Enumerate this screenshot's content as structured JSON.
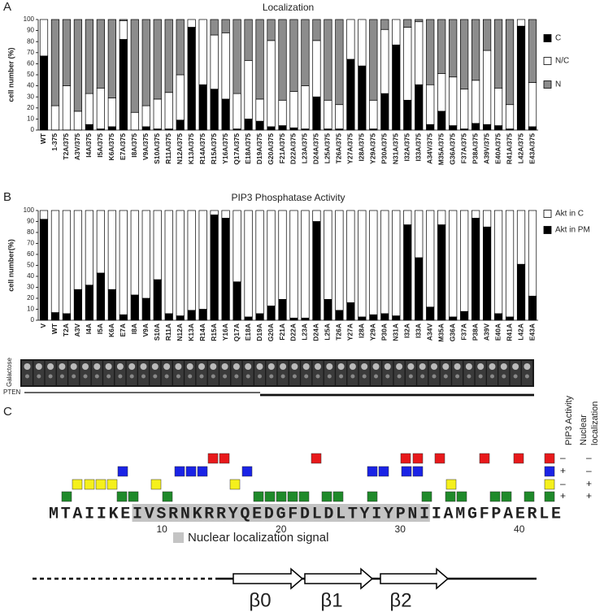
{
  "panel_labels": [
    "A",
    "B",
    "C"
  ],
  "chart_data": [
    {
      "type": "bar",
      "stacked": true,
      "title": "Localization",
      "ylabel": "cell number (%)",
      "categories": [
        "WT",
        "1-375",
        "T2A/375",
        "A3V/375",
        "I4A/375",
        "I5A/375",
        "K6A/375",
        "E7A/375",
        "I8A/375",
        "V9A/375",
        "S10A/375",
        "R11A/375",
        "N12A/375",
        "K13A/375",
        "R14A/375",
        "R15A/375",
        "Y16A/375",
        "Q17A/375",
        "E18A/375",
        "D19A/375",
        "G20A/375",
        "F21A/375",
        "D22A/375",
        "L23A/375",
        "D24A/375",
        "L25A/375",
        "T26A/375",
        "Y27A/375",
        "I28A/375",
        "Y29A/375",
        "P30A/375",
        "N31A/375",
        "I32A/375",
        "I33A/375",
        "A34V/375",
        "M35A/375",
        "G36A/375",
        "F37A/375",
        "P38A/375",
        "A39V/375",
        "E40A/375",
        "R41A/375",
        "L42A/375",
        "E43A/375"
      ],
      "series": [
        {
          "name": "C",
          "color": "#000000",
          "values": [
            67,
            0,
            0,
            0,
            5,
            1,
            3,
            82,
            0,
            3,
            1,
            1,
            9,
            93,
            41,
            37,
            28,
            1,
            10,
            8,
            3,
            4,
            2,
            1,
            30,
            1,
            1,
            64,
            58,
            1,
            33,
            77,
            27,
            41,
            5,
            17,
            4,
            1,
            6,
            5,
            4,
            1,
            94,
            3
          ]
        },
        {
          "name": "N/C",
          "color": "#ffffff",
          "values": [
            33,
            22,
            40,
            17,
            28,
            37,
            26,
            17,
            16,
            19,
            27,
            33,
            41,
            7,
            59,
            49,
            60,
            32,
            53,
            20,
            78,
            23,
            33,
            39,
            51,
            26,
            22,
            36,
            42,
            26,
            58,
            23,
            66,
            57,
            36,
            34,
            44,
            36,
            39,
            67,
            34,
            22,
            6,
            40
          ]
        },
        {
          "name": "N",
          "color": "#8c8c8c",
          "values": [
            0,
            78,
            60,
            83,
            67,
            62,
            71,
            1,
            84,
            78,
            72,
            66,
            50,
            0,
            0,
            14,
            12,
            67,
            37,
            72,
            19,
            73,
            65,
            60,
            19,
            73,
            77,
            0,
            0,
            73,
            9,
            0,
            7,
            2,
            59,
            49,
            52,
            63,
            55,
            28,
            62,
            77,
            0,
            57
          ]
        }
      ],
      "ylim": [
        0,
        100
      ],
      "yticks": [
        0,
        10,
        20,
        30,
        40,
        50,
        60,
        70,
        80,
        90,
        100
      ],
      "legend": "right",
      "grid": false
    },
    {
      "type": "bar",
      "stacked": true,
      "title": "PIP3 Phosphatase Activity",
      "ylabel": "cell number(%)",
      "categories": [
        "V",
        "WT",
        "T2A",
        "A3V",
        "I4A",
        "I5A",
        "K6A",
        "E7A",
        "I8A",
        "V9A",
        "S10A",
        "R11A",
        "N12A",
        "K13A",
        "R14A",
        "R15A",
        "Y16A",
        "Q17A",
        "E18A",
        "D19A",
        "G20A",
        "F21A",
        "D22A",
        "L23A",
        "D24A",
        "L25A",
        "T26A",
        "Y27A",
        "I28A",
        "Y29A",
        "P30A",
        "N31A",
        "I32A",
        "I33A",
        "A34V",
        "M35A",
        "G36A",
        "F37A",
        "P38A",
        "A39V",
        "E40A",
        "R41A",
        "L42A",
        "E43A"
      ],
      "series": [
        {
          "name": "Akt in PM",
          "color": "#000000",
          "values": [
            92,
            7,
            6,
            28,
            32,
            43,
            28,
            5,
            23,
            20,
            37,
            6,
            4,
            9,
            10,
            96,
            93,
            35,
            3,
            6,
            13,
            19,
            2,
            2,
            90,
            19,
            9,
            16,
            3,
            5,
            6,
            4,
            87,
            57,
            12,
            87,
            3,
            8,
            93,
            85,
            6,
            3,
            51,
            22
          ]
        },
        {
          "name": "Akt in C",
          "color": "#ffffff",
          "values": [
            8,
            93,
            94,
            72,
            68,
            57,
            72,
            95,
            77,
            80,
            63,
            94,
            96,
            91,
            90,
            4,
            7,
            65,
            97,
            94,
            87,
            81,
            98,
            98,
            10,
            81,
            91,
            84,
            97,
            95,
            94,
            96,
            13,
            43,
            88,
            13,
            97,
            92,
            7,
            15,
            94,
            97,
            49,
            78
          ]
        }
      ],
      "ylim": [
        0,
        100
      ],
      "yticks": [
        0,
        10,
        20,
        30,
        40,
        50,
        60,
        70,
        80,
        90,
        100
      ],
      "legend": "right",
      "grid": false
    }
  ],
  "gel": {
    "labels": [
      "Galactose",
      "PTEN"
    ]
  },
  "diagram": {
    "column_headers": [
      [
        "PIP3 Activity"
      ],
      [
        "Nuclear",
        "localization"
      ]
    ],
    "signs": [
      [
        "–",
        "–"
      ],
      [
        "+",
        "–"
      ],
      [
        "–",
        "+"
      ],
      [
        "+",
        "+"
      ]
    ],
    "sequence": "MTAIIKEIVSRNKRRYQEDGFDLDLTYIYPNIIAMGFPAERLE",
    "positions": [
      10,
      20,
      30,
      40
    ],
    "nls_label": "Nuclear localization signal",
    "strands": [
      "β0",
      "β1",
      "β2"
    ]
  }
}
